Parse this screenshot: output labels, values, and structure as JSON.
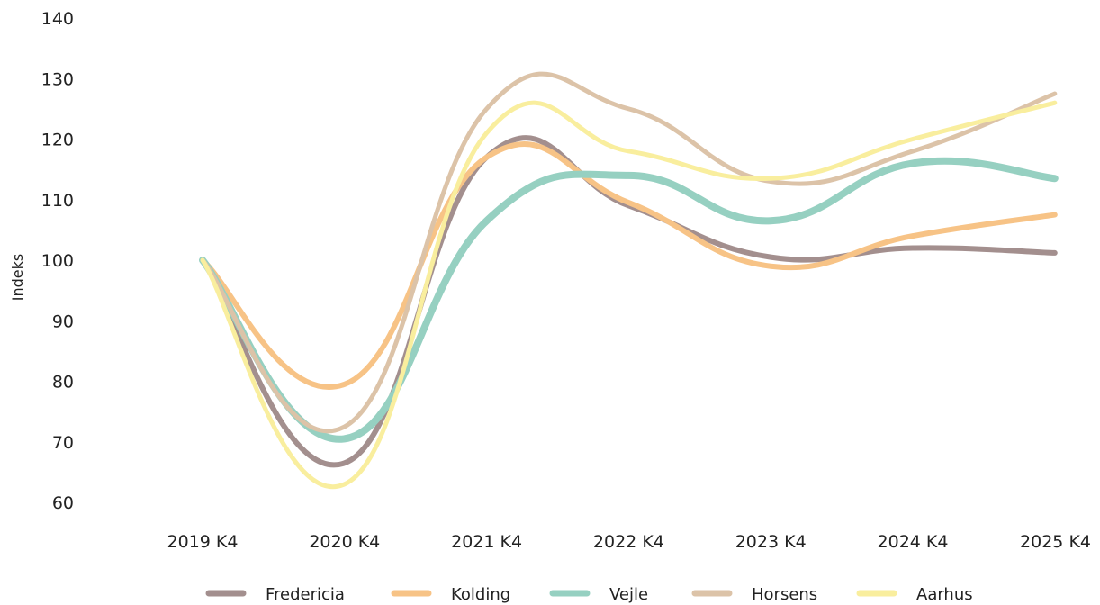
{
  "chart_data": {
    "type": "line",
    "categories": [
      "2019 K4",
      "2020 K4",
      "2021 K4",
      "2022 K4",
      "2023 K4",
      "2024 K4",
      "2025 K4"
    ],
    "ylabel": "Indeks",
    "xlabel": "",
    "ylim": [
      60,
      140
    ],
    "yticks": [
      60,
      70,
      80,
      90,
      100,
      110,
      120,
      130,
      140
    ],
    "legend_position": "bottom",
    "grid": false,
    "series": [
      {
        "name": "Fredericia",
        "color": "#a38f8e",
        "values": [
          100,
          66.5,
          117,
          109,
          100.5,
          102,
          101.2
        ]
      },
      {
        "name": "Kolding",
        "color": "#f7c386",
        "values": [
          100,
          79.5,
          117,
          109.5,
          99,
          104,
          107.5
        ]
      },
      {
        "name": "Vejle",
        "color": "#96d0c1",
        "values": [
          100,
          70.5,
          106.5,
          114,
          106.5,
          116,
          113.5
        ]
      },
      {
        "name": "Horsens",
        "color": "#dcc3a8",
        "values": [
          100,
          72.5,
          125,
          125,
          113,
          118,
          127.5
        ]
      },
      {
        "name": "Aarhus",
        "color": "#f9ee9e",
        "values": [
          100,
          63,
          121,
          118,
          113.5,
          120,
          126
        ]
      }
    ]
  }
}
